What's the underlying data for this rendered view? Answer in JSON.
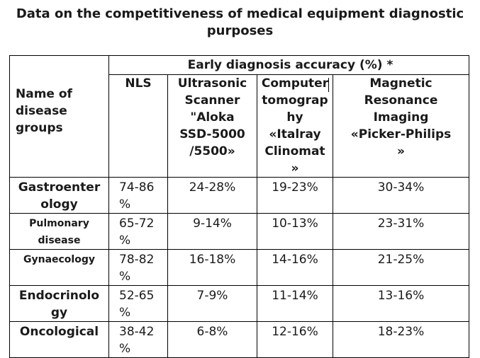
{
  "title": {
    "line1": "Data on the competitiveness of medical equipment diagnostic",
    "line2": "purposes"
  },
  "table": {
    "group_header": "Early diagnosis accuracy (%) *",
    "name_header": [
      "Name of",
      "disease",
      "groups"
    ],
    "col_headers": {
      "nls": [
        "NLS"
      ],
      "ultrasonic": [
        "Ultrasonic",
        "Scanner",
        "\"Aloka",
        "SSD-5000",
        "/5500»"
      ],
      "ct": [
        "Computer",
        "tomograp",
        "hy",
        "«Italray",
        "Clinomat",
        "»"
      ],
      "mri": [
        "Magnetic",
        "Resonance",
        "Imaging",
        "«Picker-Philips",
        "»"
      ]
    },
    "rows": [
      {
        "name": [
          "Gastroenter",
          "ology"
        ],
        "nls": [
          "74-86",
          "%"
        ],
        "ultrasonic": "24-28%",
        "ct": "19-23%",
        "mri": "30-34%"
      },
      {
        "name": [
          "Pulmonary",
          "disease"
        ],
        "nls": [
          "65-72",
          "%"
        ],
        "ultrasonic": "9-14%",
        "ct": "10-13%",
        "mri": "23-31%"
      },
      {
        "name": [
          "Gynaecology"
        ],
        "nls": [
          "78-82",
          "%"
        ],
        "ultrasonic": "16-18%",
        "ct": "14-16%",
        "mri": "21-25%"
      },
      {
        "name": [
          "Endocrinolo",
          "gy"
        ],
        "nls": [
          "52-65",
          "%"
        ],
        "ultrasonic": "7-9%",
        "ct": "11-14%",
        "mri": "13-16%"
      },
      {
        "name": [
          "Oncological"
        ],
        "nls": [
          "38-42",
          "%"
        ],
        "ultrasonic": "6-8%",
        "ct": "12-16%",
        "mri": "18-23%"
      }
    ]
  }
}
